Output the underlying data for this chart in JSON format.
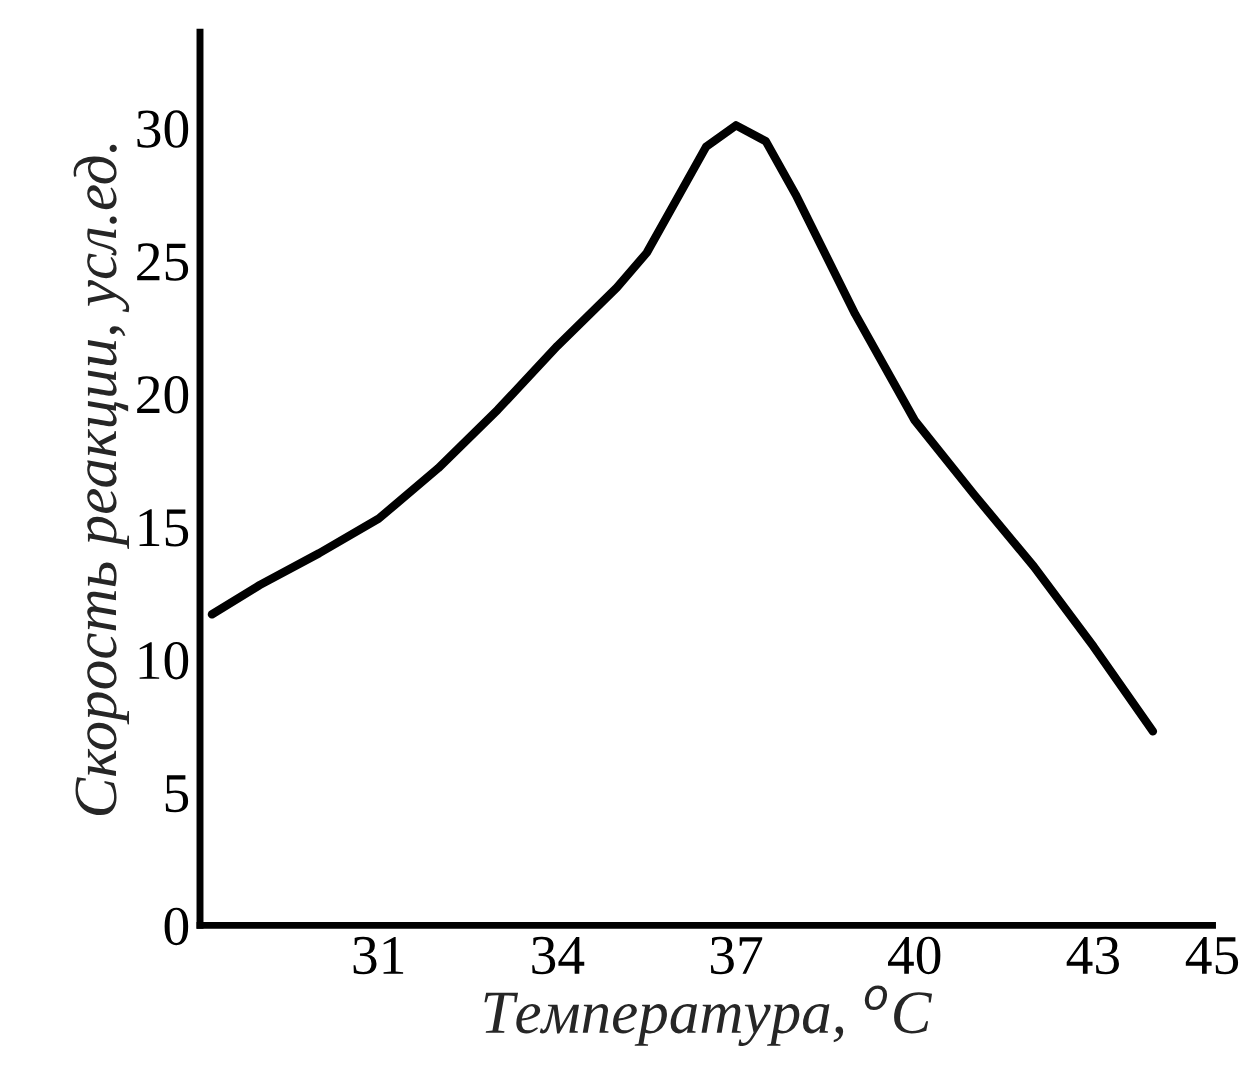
{
  "chart_data": {
    "type": "line",
    "xlabel": "Температура, $^{o}$C",
    "ylabel": "Скорость реакции, усл.ед.",
    "x": [
      28.2,
      29,
      30,
      31,
      32,
      33,
      34,
      35,
      35.5,
      36,
      36.5,
      37,
      37.5,
      38,
      39,
      40,
      41,
      42,
      43,
      44
    ],
    "series": [
      {
        "color": "#000000",
        "values": [
          11.7,
          12.8,
          14.0,
          15.3,
          17.2,
          19.4,
          21.8,
          24.0,
          25.3,
          27.3,
          29.3,
          30.1,
          29.5,
          27.5,
          23.0,
          19.0,
          16.2,
          13.5,
          10.5,
          7.3
        ]
      }
    ],
    "xlim": [
      28,
      45
    ],
    "xticks": [
      31,
      34,
      37,
      40,
      43,
      45
    ],
    "ylim": [
      0,
      33.6
    ],
    "yticks": [
      0,
      5,
      10,
      15,
      20,
      25,
      30
    ],
    "grid": false,
    "legend": false,
    "marker": "none",
    "line_style": "solid"
  }
}
